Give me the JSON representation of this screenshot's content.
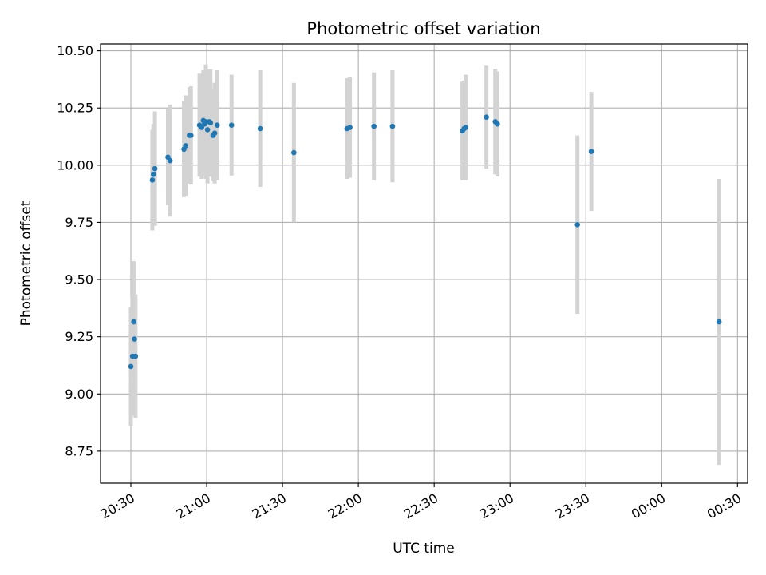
{
  "chart_data": {
    "type": "scatter",
    "title": "Photometric offset variation",
    "xlabel": "UTC time",
    "ylabel": "Photometric offset",
    "x_axis_type": "time",
    "xlim": [
      "20:18",
      "00:34"
    ],
    "ylim": [
      8.61,
      10.53
    ],
    "grid": true,
    "x_ticks": [
      "20:30",
      "21:00",
      "21:30",
      "22:00",
      "22:30",
      "23:00",
      "23:30",
      "00:00",
      "00:30"
    ],
    "y_ticks": [
      "8.75",
      "9.00",
      "9.25",
      "9.50",
      "9.75",
      "10.00",
      "10.25",
      "10.50"
    ],
    "colors": {
      "points": "#1f77b4",
      "error_bars": "#d3d3d3",
      "grid": "#b0b0b0"
    },
    "series": [
      {
        "error_bars": "yerr",
        "points": [
          {
            "x": "20:30:00",
            "y": 9.12,
            "err": 0.26
          },
          {
            "x": "20:30:40",
            "y": 9.165,
            "err": 0.26
          },
          {
            "x": "20:31:10",
            "y": 9.315,
            "err": 0.265
          },
          {
            "x": "20:31:25",
            "y": 9.24,
            "err": 0.195
          },
          {
            "x": "20:31:50",
            "y": 9.165,
            "err": 0.27
          },
          {
            "x": "20:38:30",
            "y": 9.935,
            "err": 0.22
          },
          {
            "x": "20:38:55",
            "y": 9.96,
            "err": 0.22
          },
          {
            "x": "20:39:30",
            "y": 9.985,
            "err": 0.25
          },
          {
            "x": "20:44:40",
            "y": 10.035,
            "err": 0.21
          },
          {
            "x": "20:45:30",
            "y": 10.02,
            "err": 0.245
          },
          {
            "x": "20:51:00",
            "y": 10.07,
            "err": 0.21
          },
          {
            "x": "20:51:40",
            "y": 10.085,
            "err": 0.22
          },
          {
            "x": "20:53:10",
            "y": 10.13,
            "err": 0.21
          },
          {
            "x": "20:53:45",
            "y": 10.13,
            "err": 0.215
          },
          {
            "x": "20:57:10",
            "y": 10.175,
            "err": 0.225
          },
          {
            "x": "20:58:00",
            "y": 10.165,
            "err": 0.225
          },
          {
            "x": "20:58:40",
            "y": 10.195,
            "err": 0.22
          },
          {
            "x": "20:59:10",
            "y": 10.18,
            "err": 0.225
          },
          {
            "x": "20:59:40",
            "y": 10.19,
            "err": 0.25
          },
          {
            "x": "21:00:20",
            "y": 10.155,
            "err": 0.235
          },
          {
            "x": "21:01:00",
            "y": 10.19,
            "err": 0.23
          },
          {
            "x": "21:01:30",
            "y": 10.185,
            "err": 0.235
          },
          {
            "x": "21:02:30",
            "y": 10.13,
            "err": 0.2
          },
          {
            "x": "21:03:10",
            "y": 10.14,
            "err": 0.22
          },
          {
            "x": "21:04:10",
            "y": 10.175,
            "err": 0.24
          },
          {
            "x": "21:09:50",
            "y": 10.175,
            "err": 0.22
          },
          {
            "x": "21:21:10",
            "y": 10.16,
            "err": 0.255
          },
          {
            "x": "21:34:30",
            "y": 10.055,
            "err": 0.305
          },
          {
            "x": "21:55:30",
            "y": 10.16,
            "err": 0.22
          },
          {
            "x": "21:56:40",
            "y": 10.165,
            "err": 0.22
          },
          {
            "x": "22:06:10",
            "y": 10.17,
            "err": 0.235
          },
          {
            "x": "22:13:30",
            "y": 10.17,
            "err": 0.245
          },
          {
            "x": "22:41:10",
            "y": 10.15,
            "err": 0.215
          },
          {
            "x": "22:41:50",
            "y": 10.16,
            "err": 0.21
          },
          {
            "x": "22:42:30",
            "y": 10.165,
            "err": 0.23
          },
          {
            "x": "22:50:40",
            "y": 10.21,
            "err": 0.225
          },
          {
            "x": "22:54:10",
            "y": 10.19,
            "err": 0.23
          },
          {
            "x": "22:55:00",
            "y": 10.18,
            "err": 0.23
          },
          {
            "x": "23:26:40",
            "y": 9.74,
            "err": 0.39
          },
          {
            "x": "23:32:10",
            "y": 10.06,
            "err": 0.26
          },
          {
            "x": "00:22:40",
            "y": 9.315,
            "err": 0.625
          }
        ]
      }
    ]
  }
}
